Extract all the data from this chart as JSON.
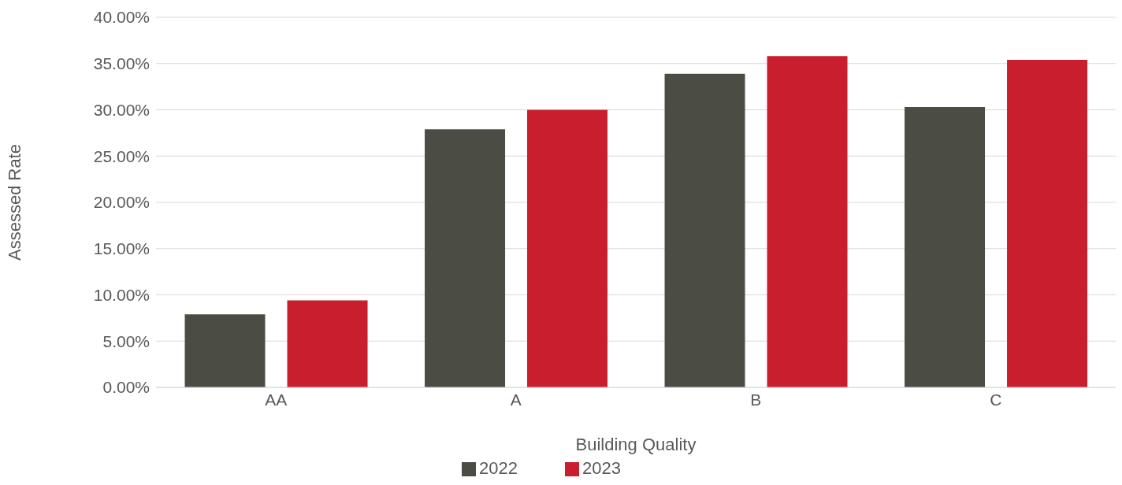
{
  "chart_data": {
    "type": "bar",
    "xlabel": "Building Quality",
    "ylabel": "Assessed Rate",
    "categories": [
      "AA",
      "A",
      "B",
      "C"
    ],
    "series": [
      {
        "name": "2022",
        "color": "#4b4d45",
        "values": [
          7.9,
          27.9,
          33.9,
          30.3
        ]
      },
      {
        "name": "2023",
        "color": "#c81e2e",
        "values": [
          9.4,
          30.0,
          35.8,
          35.4
        ]
      }
    ],
    "ylim": [
      0,
      40
    ],
    "yticks": [
      {
        "value": 0,
        "label": "0.00%"
      },
      {
        "value": 5,
        "label": "5.00%"
      },
      {
        "value": 10,
        "label": "10.00%"
      },
      {
        "value": 15,
        "label": "15.00%"
      },
      {
        "value": 20,
        "label": "20.00%"
      },
      {
        "value": 25,
        "label": "25.00%"
      },
      {
        "value": 30,
        "label": "30.00%"
      },
      {
        "value": 35,
        "label": "35.00%"
      },
      {
        "value": 40,
        "label": "40.00%"
      }
    ],
    "grid": "y",
    "legend": "bottom"
  }
}
